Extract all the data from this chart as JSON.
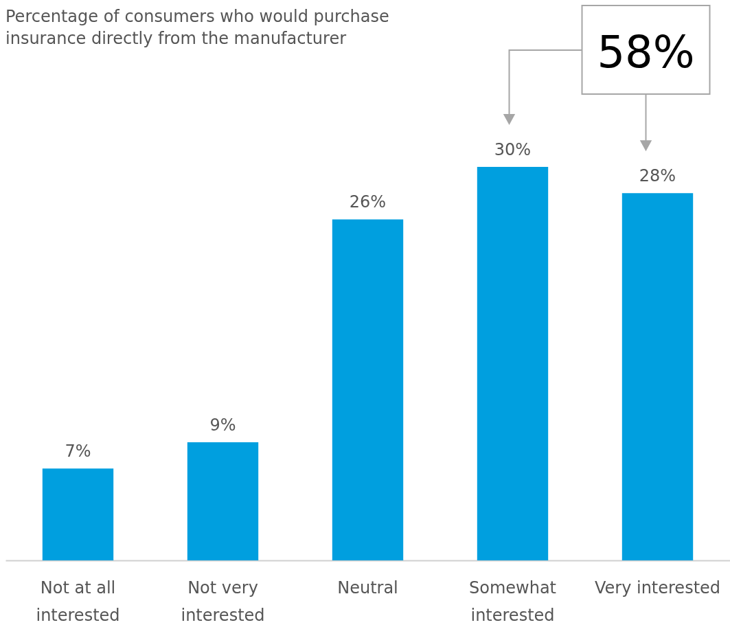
{
  "chart_data": {
    "type": "bar",
    "title": "Percentage of consumers who would purchase insurance directly from the manufacturer",
    "categories": [
      "Not at all interested",
      "Not very interested",
      "Neutral",
      "Somewhat interested",
      "Very interested"
    ],
    "values": [
      7,
      9,
      26,
      30,
      28
    ],
    "color": "#009fdf",
    "data_labels": true,
    "value_labels": [
      "7%",
      "9%",
      "26%",
      "30%",
      "28%"
    ],
    "tick_labels": "x",
    "grid": false,
    "annotations": [
      "58%"
    ]
  }
}
